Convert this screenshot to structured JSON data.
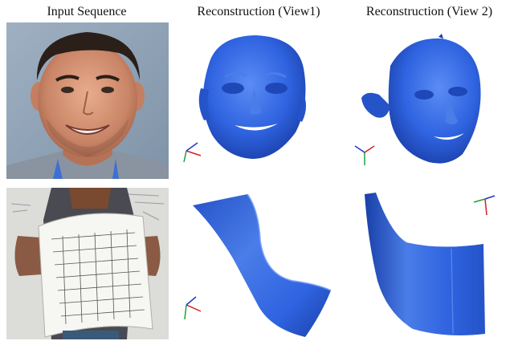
{
  "headers": {
    "input": "Input Sequence",
    "view1": "Reconstruction (View1)",
    "view2": "Reconstruction (View 2)"
  },
  "rows": [
    {
      "subject": "face"
    },
    {
      "subject": "paper"
    }
  ],
  "colors": {
    "reconstruction_blue": "#2f63e0",
    "reconstruction_dark": "#1a3fa8",
    "reconstruction_light": "#5b8cf5",
    "axis_x": "#d62020",
    "axis_y": "#1fa03a",
    "axis_z": "#2437c9"
  },
  "icons": {
    "axis_gizmo": "xyz-axis-triad-icon"
  }
}
